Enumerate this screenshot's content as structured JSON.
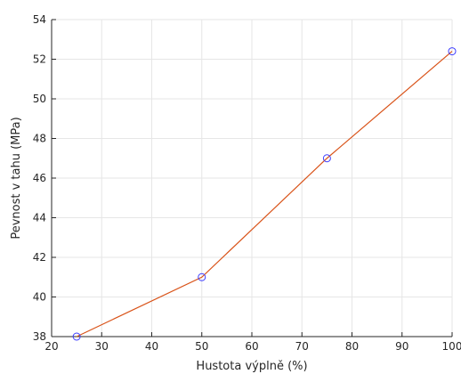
{
  "chart_data": {
    "type": "line",
    "x": [
      25,
      50,
      75,
      100
    ],
    "series": [
      {
        "values": [
          38.0,
          41.0,
          47.0,
          52.4
        ]
      }
    ],
    "xlabel": "Hustota výplně (%)",
    "ylabel": "Pevnost v tahu (MPa)",
    "xlim": [
      20,
      100
    ],
    "ylim": [
      38,
      54
    ],
    "xticks": [
      20,
      30,
      40,
      50,
      60,
      70,
      80,
      90,
      100
    ],
    "yticks": [
      38,
      40,
      42,
      44,
      46,
      48,
      50,
      52,
      54
    ],
    "grid": true,
    "line_color": "#d95319",
    "marker": "circle",
    "marker_color": "#3c3cff",
    "axis_color": "#262626",
    "grid_color": "#e6e6e6"
  }
}
